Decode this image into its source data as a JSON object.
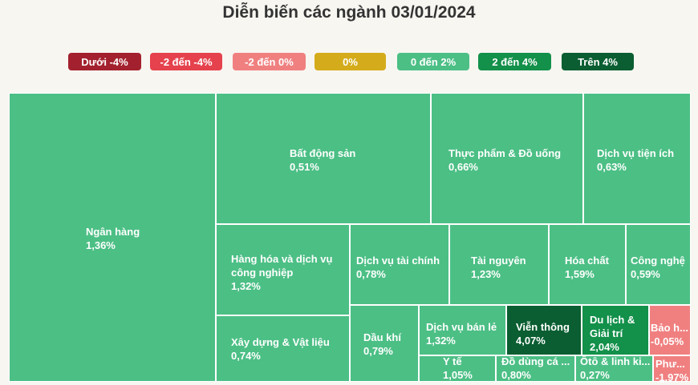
{
  "chart_data": {
    "type": "treemap",
    "title": "Diễn biến các ngành 03/01/2024",
    "legend": [
      {
        "label": "Dưới -4%",
        "color": "#a3212e"
      },
      {
        "label": "-2 đến -4%",
        "color": "#e5424d"
      },
      {
        "label": "-2 đến 0%",
        "color": "#f08080"
      },
      {
        "label": "0%",
        "color": "#d4ac1b"
      },
      {
        "label": "0 đến 2%",
        "color": "#4cbf85"
      },
      {
        "label": "2 đến 4%",
        "color": "#13904a"
      },
      {
        "label": "Trên 4%",
        "color": "#0a5e31"
      }
    ],
    "sectors": [
      {
        "name": "Ngân hàng",
        "change": "1,36%",
        "value": 1.36,
        "color": "#4cbf85"
      },
      {
        "name": "Bất động sản",
        "change": "0,51%",
        "value": 0.51,
        "color": "#4cbf85"
      },
      {
        "name": "Thực phẩm & Đồ uống",
        "change": "0,66%",
        "value": 0.66,
        "color": "#4cbf85"
      },
      {
        "name": "Dịch vụ tiện ích",
        "change": "0,63%",
        "value": 0.63,
        "color": "#4cbf85"
      },
      {
        "name": "Hàng hóa và dịch vụ công nghiệp",
        "change": "1,32%",
        "value": 1.32,
        "color": "#4cbf85"
      },
      {
        "name": "Dịch vụ tài chính",
        "change": "0,78%",
        "value": 0.78,
        "color": "#4cbf85"
      },
      {
        "name": "Tài nguyên",
        "change": "1,23%",
        "value": 1.23,
        "color": "#4cbf85"
      },
      {
        "name": "Hóa chất",
        "change": "1,59%",
        "value": 1.59,
        "color": "#4cbf85"
      },
      {
        "name": "Công nghệ",
        "change": "0,59%",
        "value": 0.59,
        "color": "#4cbf85"
      },
      {
        "name": "Xây dựng & Vật liệu",
        "change": "0,74%",
        "value": 0.74,
        "color": "#4cbf85"
      },
      {
        "name": "Dầu khí",
        "change": "0,79%",
        "value": 0.79,
        "color": "#4cbf85"
      },
      {
        "name": "Dịch vụ bán lẻ",
        "change": "1,32%",
        "value": 1.32,
        "color": "#4cbf85"
      },
      {
        "name": "Viễn thông",
        "change": "4,07%",
        "value": 4.07,
        "color": "#0a5e31"
      },
      {
        "name": "Du lịch & Giải trí",
        "change": "2,04%",
        "value": 2.04,
        "color": "#13904a"
      },
      {
        "name": "Bảo h...",
        "change": "-0,05%",
        "value": -0.05,
        "color": "#f08080"
      },
      {
        "name": "Y tế",
        "change": "1,05%",
        "value": 1.05,
        "color": "#4cbf85"
      },
      {
        "name": "Đồ dùng cá ...",
        "change": "0,80%",
        "value": 0.8,
        "color": "#4cbf85"
      },
      {
        "name": "Ôtô & linh ki...",
        "change": "0,27%",
        "value": 0.27,
        "color": "#4cbf85"
      },
      {
        "name": "Phư...",
        "change": "-1,97%",
        "value": -1.97,
        "color": "#f08080"
      }
    ]
  }
}
